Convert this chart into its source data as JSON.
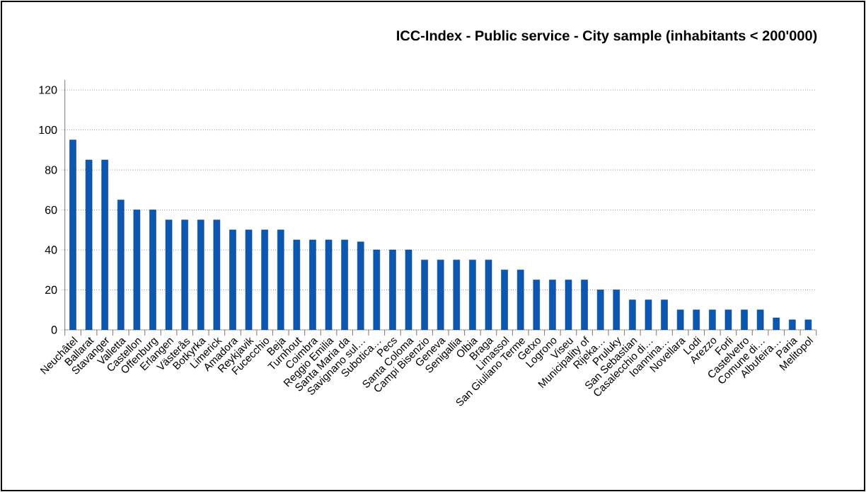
{
  "chart_data": {
    "type": "bar",
    "title": "ICC-Index - Public service - City sample (inhabitants < 200'000)",
    "categories": [
      "Neuchâtel",
      "Ballarat",
      "Stavanger",
      "Valletta",
      "Castellon",
      "Offenburg",
      "Erlangen",
      "Västerås",
      "Botkyrka",
      "Limerick",
      "Amadora",
      "Reykjavik",
      "Fucecchio",
      "Beja",
      "Turnhout",
      "Coimbra",
      "Reggio Emilia",
      "Santa Maria da",
      "Savignano sul…",
      "Subotica…",
      "Pecs",
      "Santa Coloma",
      "Campi Bisenzio",
      "Geneva",
      "Senigallia",
      "Olbia",
      "Braga",
      "Limassol",
      "San Giuliano Terme",
      "Getxo",
      "Logrono",
      "Viseu",
      "Municipality of",
      "Rijeka…",
      "Pruluky",
      "San Sebastian",
      "Casalecchio di…",
      "Ioannina…",
      "Novellara",
      "Lodi",
      "Arezzo",
      "Forli",
      "Castelvetro",
      "Comune di…",
      "Albufeira…",
      "Paria",
      "Melitopol"
    ],
    "values": [
      95,
      85,
      85,
      65,
      60,
      60,
      55,
      55,
      55,
      55,
      50,
      50,
      50,
      50,
      45,
      45,
      45,
      45,
      44,
      40,
      40,
      40,
      35,
      35,
      35,
      35,
      35,
      30,
      30,
      25,
      25,
      25,
      25,
      20,
      20,
      15,
      15,
      15,
      10,
      10,
      10,
      10,
      10,
      10,
      6,
      5,
      5
    ],
    "color": "#0a58b4",
    "ylim": [
      0,
      125
    ],
    "yticks": [
      0,
      20,
      40,
      60,
      80,
      100,
      120
    ],
    "grid": "y"
  }
}
